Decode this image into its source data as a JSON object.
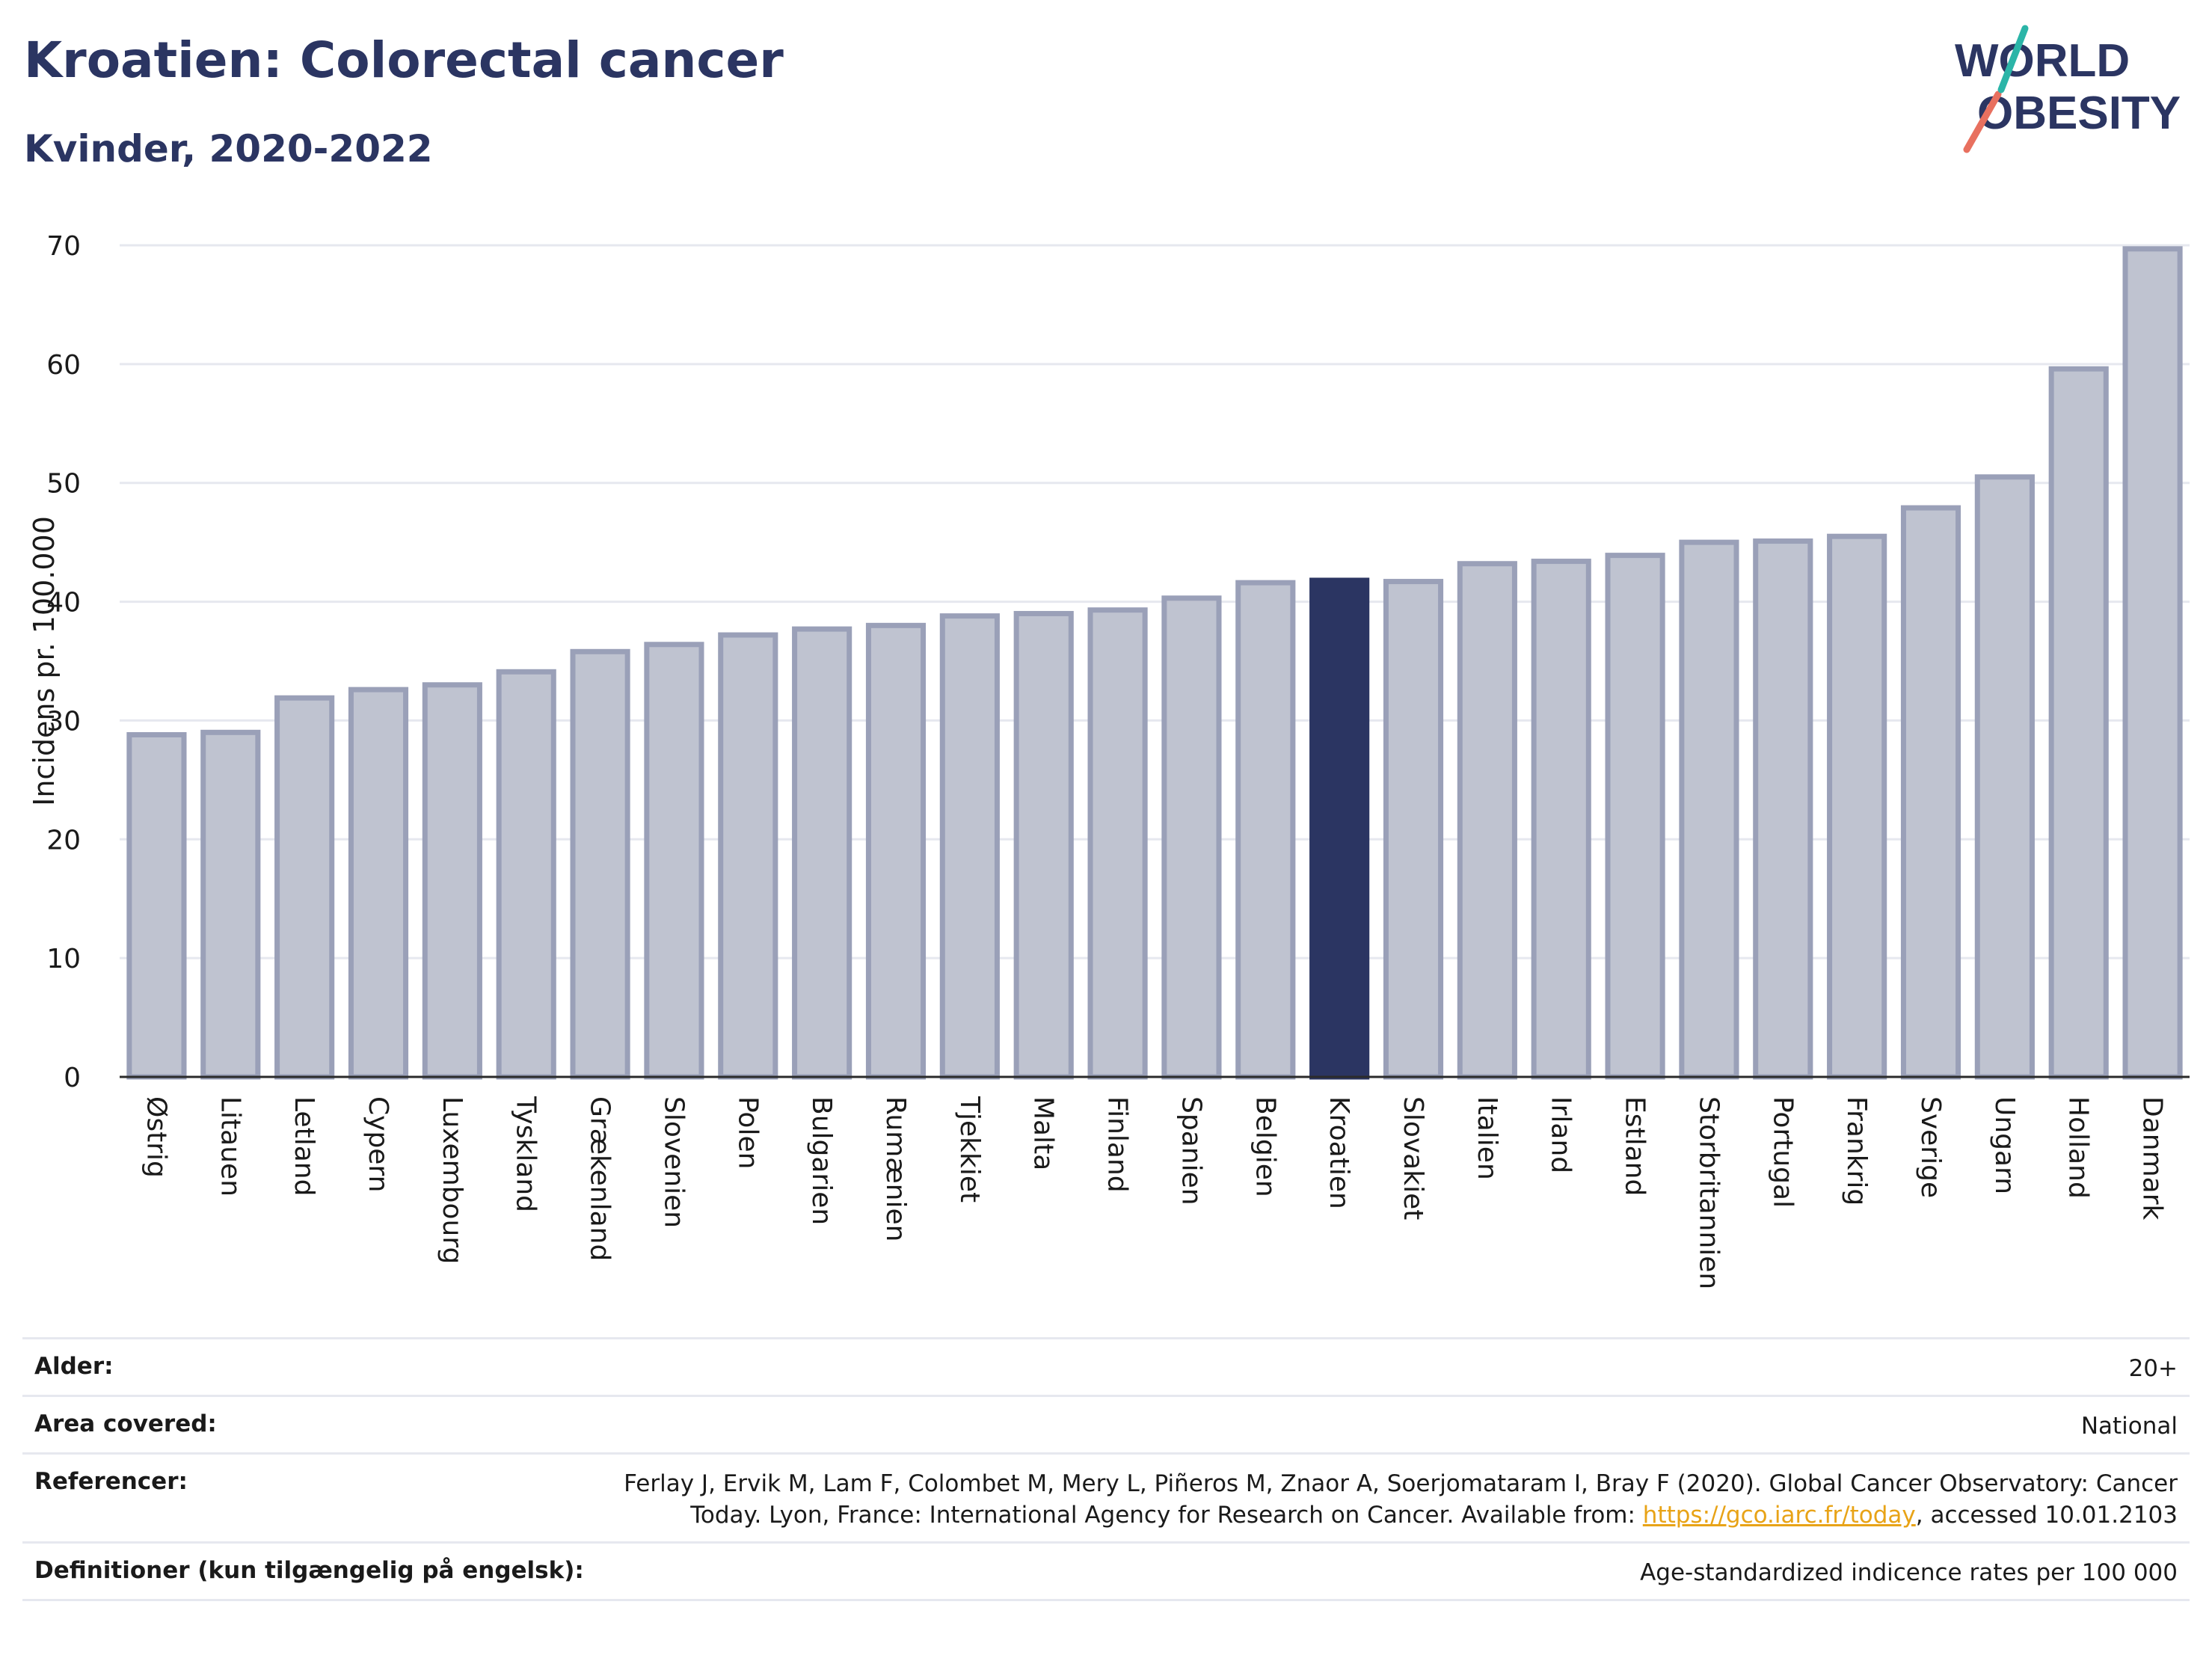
{
  "header": {
    "title": "Kroatien: Colorectal cancer",
    "subtitle": "Kvinder, 2020-2022"
  },
  "logo": {
    "line1": "WORLD",
    "line2": "OBESITY"
  },
  "colors": {
    "bar": "#bfc3d0",
    "bar_border": "#9aa0b8",
    "highlight": "#2b3562",
    "text": "#2b3562",
    "grid": "#e6e8ef"
  },
  "chart_data": {
    "type": "bar",
    "ylabel": "Incidens pr. 100.000",
    "ylim": [
      0,
      70
    ],
    "yticks": [
      0,
      10,
      20,
      30,
      40,
      50,
      60,
      70
    ],
    "highlight": "Kroatien",
    "categories": [
      "Østrig",
      "Litauen",
      "Letland",
      "Cypern",
      "Luxembourg",
      "Tyskland",
      "Grækenland",
      "Slovenien",
      "Polen",
      "Bulgarien",
      "Rumænien",
      "Tjekkiet",
      "Malta",
      "Finland",
      "Spanien",
      "Belgien",
      "Kroatien",
      "Slovakiet",
      "Italien",
      "Irland",
      "Estland",
      "Storbritannien",
      "Portugal",
      "Frankrig",
      "Sverige",
      "Ungarn",
      "Holland",
      "Danmark"
    ],
    "values": [
      28.8,
      29.0,
      31.9,
      32.6,
      33.0,
      34.1,
      35.8,
      36.4,
      37.2,
      37.7,
      38.0,
      38.8,
      39.0,
      39.3,
      40.3,
      41.6,
      41.8,
      41.7,
      43.2,
      43.4,
      43.9,
      45.0,
      45.1,
      45.5,
      47.9,
      50.5,
      59.6,
      69.7
    ]
  },
  "footer": {
    "rows": [
      {
        "label": "Alder:",
        "value": "20+"
      },
      {
        "label": "Area covered:",
        "value": "National"
      },
      {
        "label": "Referencer:",
        "value_line1": "Ferlay J, Ervik M, Lam F, Colombet M, Mery L, Piñeros M, Znaor A, Soerjomataram I, Bray F (2020). Global Cancer Observatory: Cancer",
        "value_line2a": "Today. Lyon, France: International Agency for Research on Cancer. Available from: ",
        "link": "https://gco.iarc.fr/today",
        "value_line2b": ", accessed 10.01.2103"
      },
      {
        "label": "Definitioner (kun tilgængelig på engelsk):",
        "value": "Age-standardized indicence rates per 100 000"
      }
    ]
  }
}
